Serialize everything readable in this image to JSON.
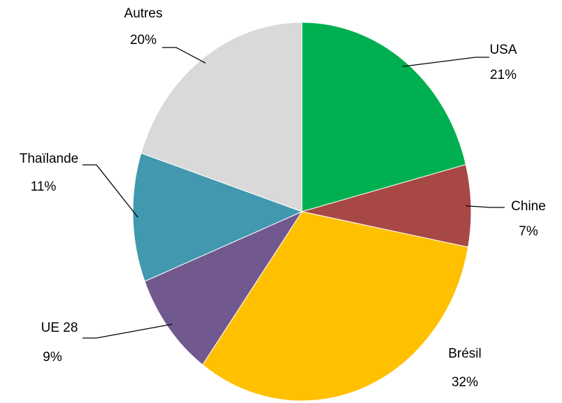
{
  "chart_data": {
    "type": "pie",
    "categories": [
      "USA",
      "Chine",
      "Brésil",
      "UE 28",
      "Thaïlande",
      "Autres"
    ],
    "values": [
      21,
      7,
      32,
      9,
      11,
      20
    ],
    "value_labels": [
      "21%",
      "7%",
      "32%",
      "9%",
      "11%",
      "20%"
    ],
    "colors": [
      "#00b050",
      "#a84845",
      "#ffc000",
      "#71588f",
      "#4198af",
      "#d9d9d9"
    ]
  }
}
